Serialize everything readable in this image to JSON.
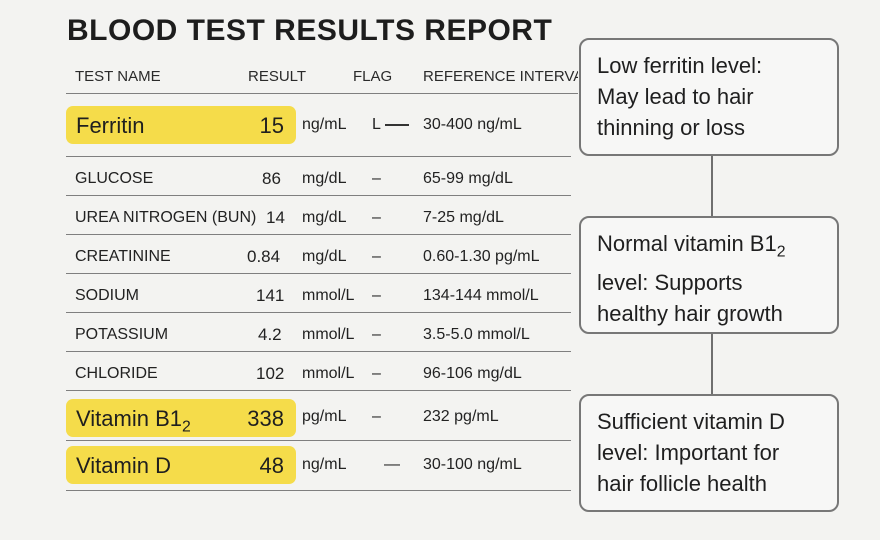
{
  "title": "BLOOD TEST RESULTS REPORT",
  "table": {
    "headers": {
      "name": "TEST NAME",
      "result": "RESULT",
      "flag": "FLAG",
      "reference": "REFERENCE INTERVAL"
    },
    "highlighted": [
      {
        "name": "Ferritin",
        "result": "15",
        "unit": "ng/mL",
        "flag": "L",
        "reference": "30-400 ng/mL"
      },
      {
        "name": "Vitamin B1",
        "name_sub": "2",
        "result": "338",
        "unit": "pg/mL",
        "flag": "–",
        "reference": "232 pg/mL"
      },
      {
        "name": "Vitamin D",
        "result": "48",
        "unit": "ng/mL",
        "flag": "—",
        "reference": "30-100 ng/mL"
      }
    ],
    "rows": [
      {
        "name": "GLUCOSE",
        "result": "86",
        "unit": "mg/dL",
        "flag": "–",
        "reference": "65-99 mg/dL"
      },
      {
        "name": "UREA NITROGEN (BUN)",
        "result": "14",
        "unit": "mg/dL",
        "flag": "–",
        "reference": "7-25 mg/dL"
      },
      {
        "name": "CREATININE",
        "result": "0.84",
        "unit": "mg/dL",
        "flag": "–",
        "reference": "0.60-1.30 pg/mL"
      },
      {
        "name": "SODIUM",
        "result": "141",
        "unit": "mmol/L",
        "flag": "–",
        "reference": "134-144 mmol/L"
      },
      {
        "name": "POTASSIUM",
        "result": "4.2",
        "unit": "mmol/L",
        "flag": "–",
        "reference": "3.5-5.0 mmol/L"
      },
      {
        "name": "CHLORIDE",
        "result": "102",
        "unit": "mmol/L",
        "flag": "–",
        "reference": "96-106 mg/dL"
      }
    ],
    "highlight_color": "#f5dc4a"
  },
  "annotations": [
    {
      "lines": [
        "Low ferritin level:",
        "May lead to hair",
        "thinning or loss"
      ]
    },
    {
      "line1": "Normal vitamin B1",
      "line1_sub": "2",
      "line2": "level: Supports",
      "line3": "healthy hair growth"
    },
    {
      "lines": [
        "Sufficient vitamin D",
        "level: Important for",
        "hair follicle health"
      ]
    }
  ]
}
